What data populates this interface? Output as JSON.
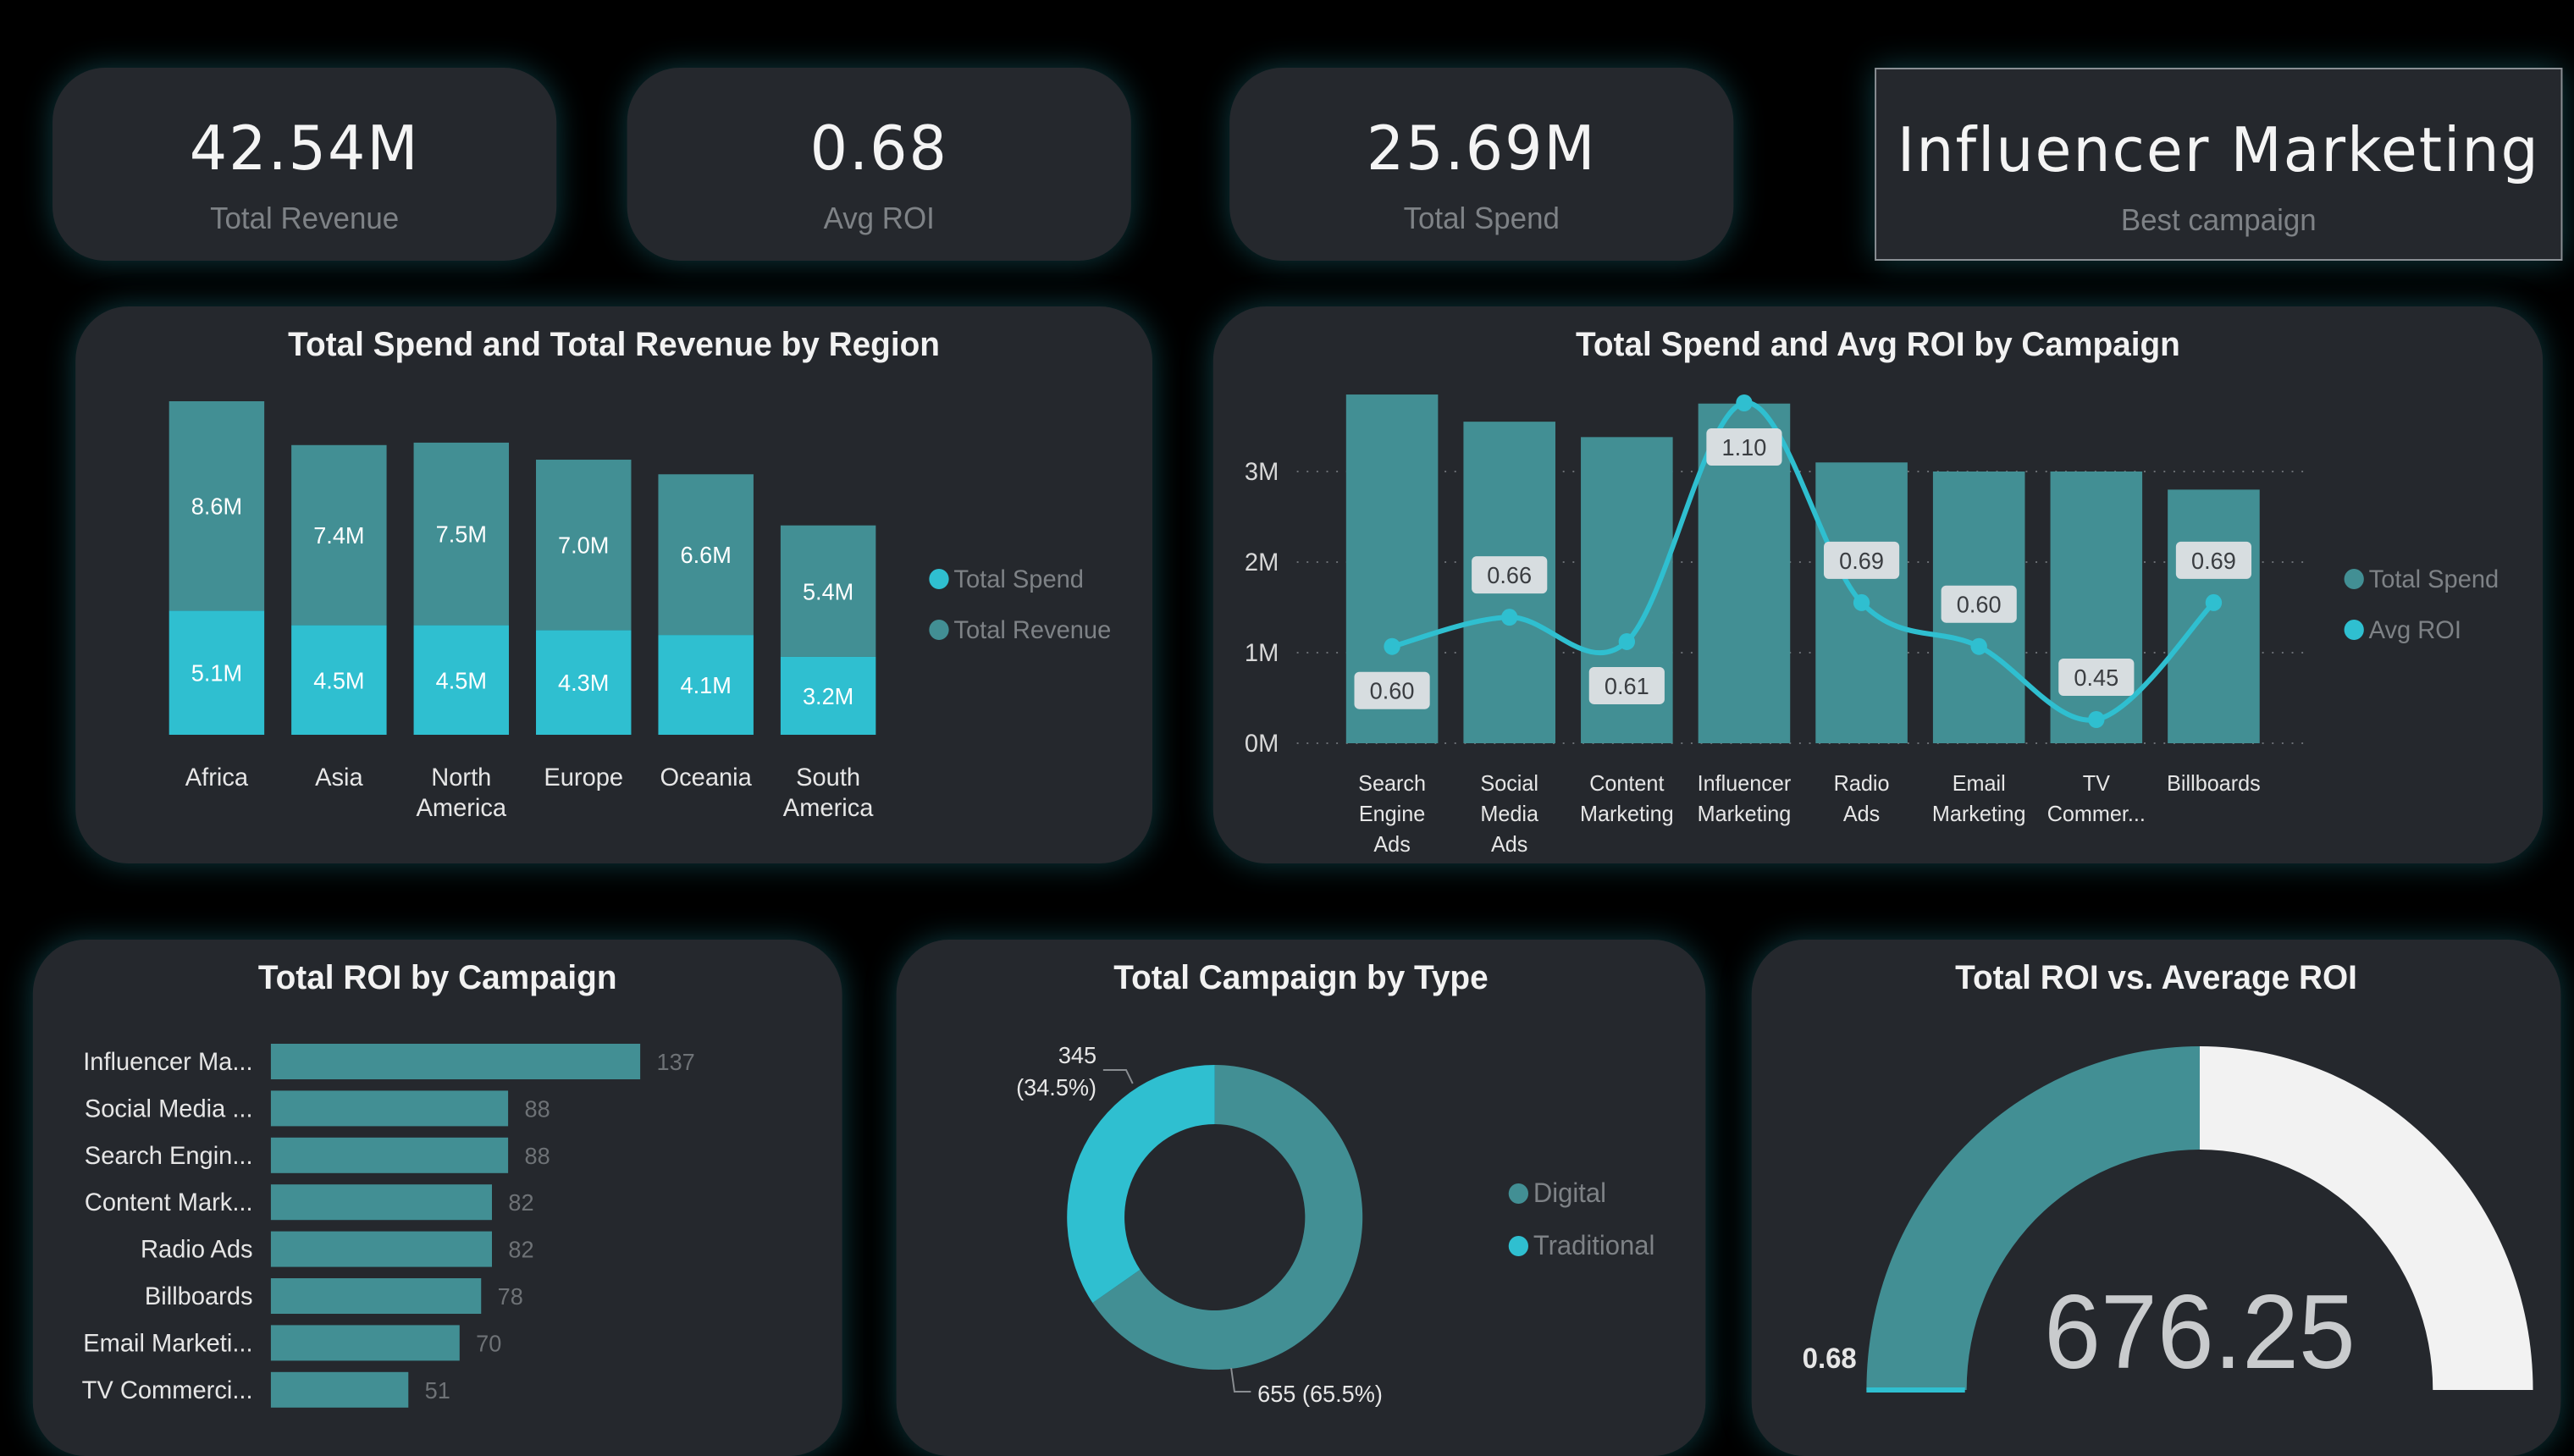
{
  "colors": {
    "teal": "#428f94",
    "cyan": "#2fbfd0",
    "panel": "#25282d",
    "background": "#000000",
    "gauge_remainder": "#f2f2f2"
  },
  "kpis": [
    {
      "value": "42.54M",
      "label": "Total Revenue"
    },
    {
      "value": "0.68",
      "label": "Avg ROI"
    },
    {
      "value": "25.69M",
      "label": "Total Spend"
    },
    {
      "value": "Influencer Marketing",
      "label": "Best campaign"
    }
  ],
  "region_chart": {
    "title": "Total Spend and Total Revenue by Region"
  },
  "campaign_chart": {
    "title": "Total Spend and Avg ROI by Campaign"
  },
  "roi_bar_chart": {
    "title": "Total ROI by Campaign"
  },
  "donut_chart": {
    "title": "Total Campaign by Type"
  },
  "gauge_chart": {
    "title": "Total ROI vs. Average ROI"
  },
  "chart_data": [
    {
      "type": "bar",
      "stacked": true,
      "title": "Total Spend and Total Revenue by Region",
      "categories": [
        "Africa",
        "Asia",
        "North America",
        "Europe",
        "Oceania",
        "South America"
      ],
      "series": [
        {
          "name": "Total Spend",
          "values": [
            5.1,
            4.5,
            4.5,
            4.3,
            4.1,
            3.2
          ],
          "labels": [
            "5.1M",
            "4.5M",
            "4.5M",
            "4.3M",
            "4.1M",
            "3.2M"
          ],
          "color": "#2fbfd0"
        },
        {
          "name": "Total Revenue",
          "values": [
            8.6,
            7.4,
            7.5,
            7.0,
            6.6,
            5.4
          ],
          "labels": [
            "8.6M",
            "7.4M",
            "7.5M",
            "7.0M",
            "6.6M",
            "5.4M"
          ],
          "color": "#428f94"
        }
      ],
      "unit": "M",
      "legend": "right"
    },
    {
      "type": "bar",
      "combo": "bar+line",
      "title": "Total Spend and Avg ROI by Campaign",
      "categories": [
        "Search Engine Ads",
        "Social Media Ads",
        "Content Marketing",
        "Influencer Marketing",
        "Radio Ads",
        "Email Marketing",
        "TV Commer...",
        "Billboards"
      ],
      "series": [
        {
          "name": "Total Spend",
          "type": "bar",
          "values": [
            3.85,
            3.55,
            3.38,
            3.75,
            3.1,
            3.0,
            3.0,
            2.8
          ],
          "color": "#428f94"
        },
        {
          "name": "Avg ROI",
          "type": "line",
          "values": [
            0.6,
            0.66,
            0.61,
            1.1,
            0.69,
            0.6,
            0.45,
            0.69
          ],
          "labels": [
            "0.60",
            "0.66",
            "0.61",
            "1.10",
            "0.69",
            "0.60",
            "0.45",
            "0.69"
          ],
          "color": "#2fbfd0"
        }
      ],
      "y_ticks": [
        "0M",
        "1M",
        "2M",
        "3M"
      ],
      "ylim": [
        0,
        3.85
      ],
      "legend": "right"
    },
    {
      "type": "bar",
      "orientation": "horizontal",
      "title": "Total ROI by Campaign",
      "categories": [
        "Influencer Ma...",
        "Social Media ...",
        "Search Engin...",
        "Content Mark...",
        "Radio Ads",
        "Billboards",
        "Email Marketi...",
        "TV Commerci..."
      ],
      "values": [
        137,
        88,
        88,
        82,
        82,
        78,
        70,
        51
      ],
      "color": "#428f94"
    },
    {
      "type": "pie",
      "donut": true,
      "title": "Total Campaign by Type",
      "categories": [
        "Digital",
        "Traditional"
      ],
      "values": [
        655,
        345
      ],
      "labels": [
        "655 (65.5%)",
        "345 (34.5%)"
      ],
      "colors": [
        "#428f94",
        "#2fbfd0"
      ],
      "legend": "right"
    },
    {
      "type": "gauge",
      "title": "Total ROI vs. Average ROI",
      "value": 676.25,
      "value_label": "676.25",
      "target": 0.68,
      "target_label": "0.68",
      "fill_fraction": 0.5
    }
  ]
}
